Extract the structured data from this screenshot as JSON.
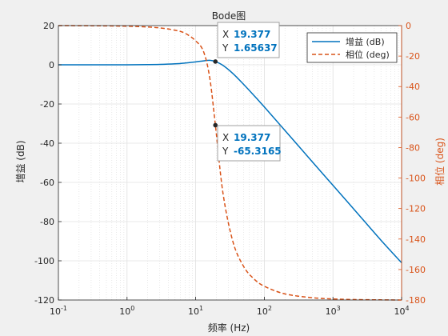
{
  "chart_data": {
    "type": "line",
    "title": "Bode图",
    "xlabel": "频率 (Hz)",
    "ylabel_left": "增益 (dB)",
    "ylabel_right": "相位 (deg)",
    "xscale": "log",
    "xlim": [
      0.1,
      10000
    ],
    "ylim_left": [
      -120,
      20
    ],
    "ylim_right": [
      -180,
      0
    ],
    "x_ticks": [
      {
        "base": "10",
        "exp": "-1",
        "value": 0.1
      },
      {
        "base": "10",
        "exp": "0",
        "value": 1
      },
      {
        "base": "10",
        "exp": "1",
        "value": 10
      },
      {
        "base": "10",
        "exp": "2",
        "value": 100
      },
      {
        "base": "10",
        "exp": "3",
        "value": 1000
      },
      {
        "base": "10",
        "exp": "4",
        "value": 10000
      }
    ],
    "y_ticks_left": [
      "20",
      "0",
      "-20",
      "-40",
      "-60",
      "-80",
      "-100",
      "-120"
    ],
    "y_ticks_right": [
      "0",
      "-20",
      "-40",
      "-60",
      "-80",
      "-100",
      "-120",
      "-140",
      "-160",
      "-180"
    ],
    "grid": true,
    "legend_position": "top-right",
    "legend": [
      {
        "label": "增益 (dB)",
        "color": "#0072bd",
        "style": "solid"
      },
      {
        "label": "相位 (deg)",
        "color": "#d95319",
        "style": "dashed"
      }
    ],
    "series": [
      {
        "name": "增益 (dB)",
        "axis": "left",
        "color": "#0072bd",
        "x": [
          0.1,
          0.3,
          1,
          2,
          3,
          5,
          7,
          10,
          13,
          16,
          19.377,
          25,
          35,
          50,
          70,
          100,
          200,
          500,
          1000,
          2000,
          5000,
          10000
        ],
        "values": [
          0,
          0,
          0.02,
          0.08,
          0.18,
          0.5,
          0.9,
          1.5,
          2.0,
          2.3,
          1.66,
          -0.3,
          -4.5,
          -10.0,
          -15.5,
          -21.5,
          -33.5,
          -49.5,
          -61.5,
          -73.5,
          -89.5,
          -101.0
        ]
      },
      {
        "name": "相位 (deg)",
        "axis": "right",
        "color": "#d95319",
        "x": [
          0.1,
          0.3,
          1,
          2,
          3,
          5,
          7,
          10,
          13,
          16,
          19.377,
          25,
          35,
          50,
          70,
          100,
          200,
          500,
          1000,
          2000,
          5000,
          10000
        ],
        "values": [
          0,
          -0.1,
          -0.4,
          -0.9,
          -1.5,
          -3,
          -5,
          -10,
          -17,
          -34,
          -65.3165,
          -110,
          -142,
          -158,
          -166,
          -171,
          -176,
          -178.5,
          -179.3,
          -179.7,
          -179.9,
          -180
        ]
      }
    ],
    "datatips": [
      {
        "x_key": "X",
        "x_value": "19.377",
        "y_key": "Y",
        "y_value": "1.65637",
        "axis": "left",
        "x": 19.377,
        "y": 1.65637
      },
      {
        "x_key": "X",
        "x_value": "19.377",
        "y_key": "Y",
        "y_value": "-65.3165",
        "axis": "right",
        "x": 19.377,
        "y": -65.3165
      }
    ]
  }
}
